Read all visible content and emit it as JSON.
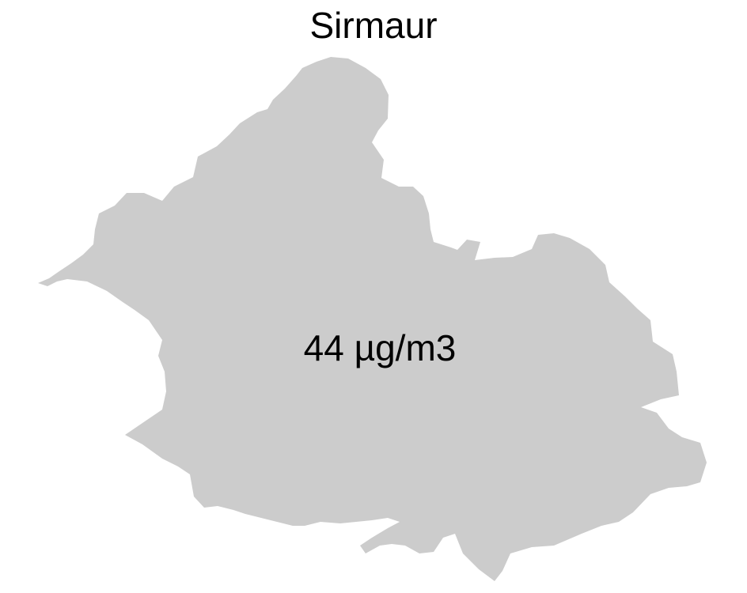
{
  "map": {
    "title": "Sirmaur",
    "value_label": "44 µg/m3",
    "fill_color": "#cccccc",
    "background_color": "#ffffff"
  }
}
